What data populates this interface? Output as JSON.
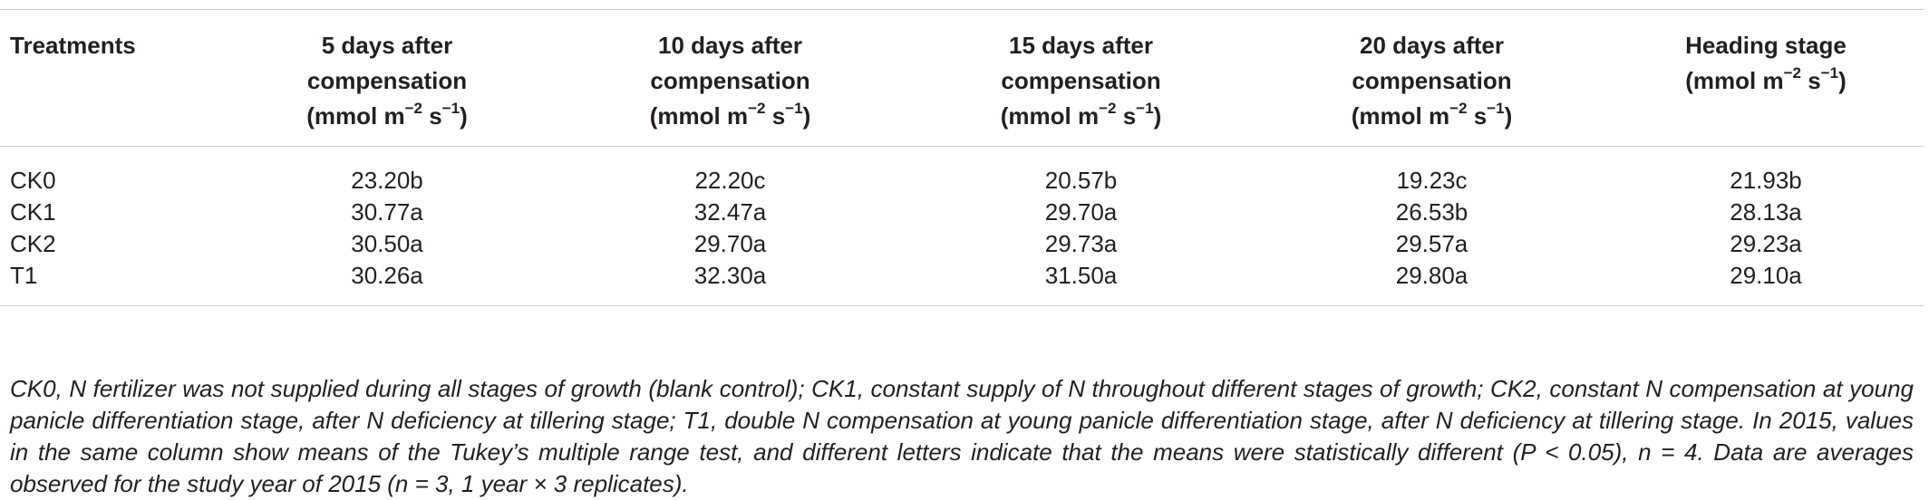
{
  "table": {
    "headers": [
      {
        "lines": [
          "Treatments"
        ]
      },
      {
        "lines": [
          "5 days after",
          "compensation"
        ],
        "unit_prefix": "(mmol m",
        "exp1": "−2",
        "unit_mid": " s",
        "exp2": "−1",
        "unit_suffix": ")"
      },
      {
        "lines": [
          "10 days after",
          "compensation"
        ],
        "unit_prefix": "(mmol m",
        "exp1": "−2",
        "unit_mid": " s",
        "exp2": "−1",
        "unit_suffix": ")"
      },
      {
        "lines": [
          "15 days after",
          "compensation"
        ],
        "unit_prefix": "(mmol m",
        "exp1": "−2",
        "unit_mid": " s",
        "exp2": "−1",
        "unit_suffix": ")"
      },
      {
        "lines": [
          "20 days after",
          "compensation"
        ],
        "unit_prefix": "(mmol m",
        "exp1": "−2",
        "unit_mid": " s",
        "exp2": "−1",
        "unit_suffix": ")"
      },
      {
        "lines": [
          "Heading stage"
        ],
        "unit_prefix": "(mmol m",
        "exp1": "−2",
        "unit_mid": " s",
        "exp2": "−1",
        "unit_suffix": ")"
      }
    ],
    "rows": [
      [
        "CK0",
        "23.20b",
        "22.20c",
        "20.57b",
        "19.23c",
        "21.93b"
      ],
      [
        "CK1",
        "30.77a",
        "32.47a",
        "29.70a",
        "26.53b",
        "28.13a"
      ],
      [
        "CK2",
        "30.50a",
        "29.70a",
        "29.73a",
        "29.57a",
        "29.23a"
      ],
      [
        "T1",
        "30.26a",
        "32.30a",
        "31.50a",
        "29.80a",
        "29.10a"
      ]
    ]
  },
  "footnote": "CK0, N fertilizer was not supplied during all stages of growth (blank control); CK1, constant supply of N throughout different stages of growth; CK2, constant N compensation at young panicle differentiation stage, after N deficiency at tillering stage; T1, double N compensation at young panicle differentiation stage, after N deficiency at tillering stage. In 2015, values in the same column show means of the Tukey’s multiple range test, and different letters indicate that the means were statistically different (P < 0.05), n = 4. Data are averages observed for the study year of 2015 (n = 3, 1 year × 3 replicates)."
}
